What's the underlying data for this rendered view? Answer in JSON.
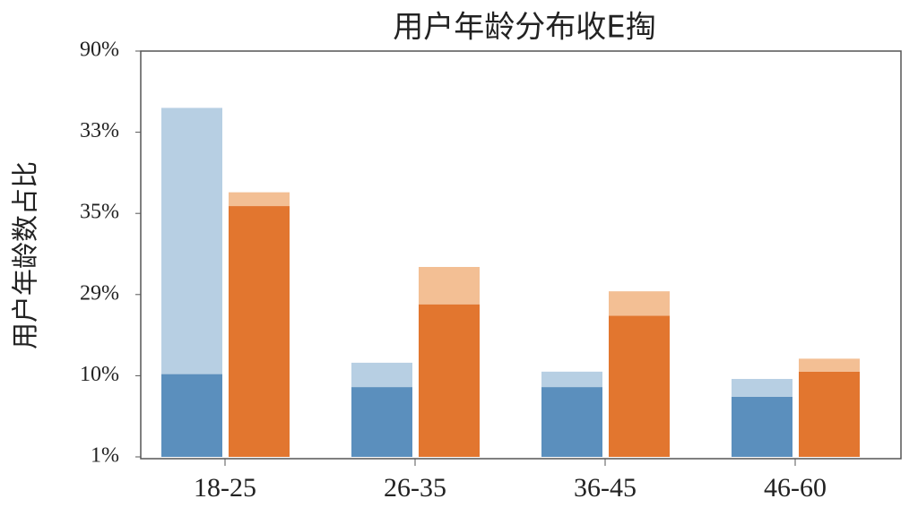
{
  "chart_data": {
    "type": "stacked_bar",
    "title": "用户年龄分布收E掏",
    "ylabel": "用户年龄数占比",
    "categories": [
      "18-25",
      "26-35",
      "36-45",
      "46-60"
    ],
    "ylim": [
      0,
      5
    ],
    "yticks": [
      {
        "value": 0,
        "label": "1%"
      },
      {
        "value": 1,
        "label": "10%"
      },
      {
        "value": 2,
        "label": "29%"
      },
      {
        "value": 3,
        "label": "35%"
      },
      {
        "value": 4,
        "label": "33%"
      },
      {
        "value": 5,
        "label": "90%"
      }
    ],
    "series": [
      {
        "color": "#5b8fbd",
        "stack": 0,
        "values": [
          1.02,
          0.86,
          0.86,
          0.74
        ]
      },
      {
        "color": "#b7cfe3",
        "stack": 0,
        "values": [
          3.28,
          0.3,
          0.19,
          0.22
        ]
      },
      {
        "color": "#e2762f",
        "stack": 1,
        "values": [
          3.09,
          1.88,
          1.74,
          1.05
        ]
      },
      {
        "color": "#f3bf94",
        "stack": 1,
        "values": [
          0.17,
          0.46,
          0.3,
          0.16
        ]
      }
    ]
  }
}
